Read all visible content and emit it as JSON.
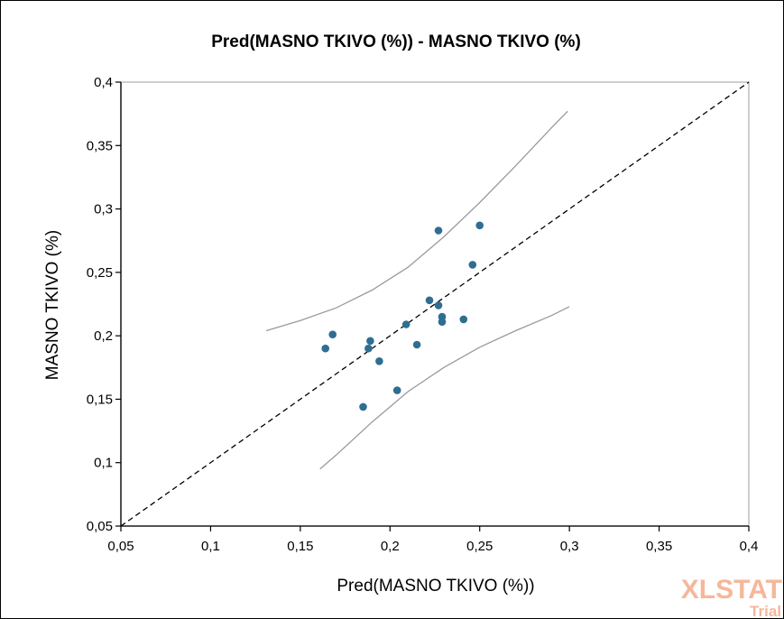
{
  "chart_data": {
    "type": "scatter",
    "title": "Pred(MASNO TKIVO (%)) - MASNO TKIVO (%)",
    "xlabel": "Pred(MASNO TKIVO (%))",
    "ylabel": "MASNO TKIVO (%)",
    "xlim": [
      0.05,
      0.4
    ],
    "ylim": [
      0.05,
      0.4
    ],
    "xticks": [
      "0,05",
      "0,1",
      "0,15",
      "0,2",
      "0,25",
      "0,3",
      "0,35",
      "0,4"
    ],
    "yticks": [
      "0,05",
      "0,1",
      "0,15",
      "0,2",
      "0,25",
      "0,3",
      "0,35",
      "0,4"
    ],
    "xtick_values": [
      0.05,
      0.1,
      0.15,
      0.2,
      0.25,
      0.3,
      0.35,
      0.4
    ],
    "ytick_values": [
      0.05,
      0.1,
      0.15,
      0.2,
      0.25,
      0.3,
      0.35,
      0.4
    ],
    "grid": false,
    "points": {
      "x": [
        0.164,
        0.168,
        0.185,
        0.188,
        0.189,
        0.194,
        0.204,
        0.209,
        0.215,
        0.222,
        0.227,
        0.227,
        0.229,
        0.229,
        0.241,
        0.246,
        0.25
      ],
      "y": [
        0.19,
        0.201,
        0.144,
        0.19,
        0.196,
        0.18,
        0.157,
        0.209,
        0.193,
        0.228,
        0.224,
        0.283,
        0.215,
        0.211,
        0.213,
        0.256,
        0.287
      ]
    },
    "reference_line": {
      "x": [
        0.05,
        0.4
      ],
      "y": [
        0.05,
        0.4
      ]
    },
    "upper_band": {
      "x": [
        0.131,
        0.15,
        0.17,
        0.19,
        0.21,
        0.23,
        0.25,
        0.27,
        0.29,
        0.299
      ],
      "y": [
        0.204,
        0.212,
        0.222,
        0.236,
        0.254,
        0.278,
        0.305,
        0.334,
        0.364,
        0.377
      ]
    },
    "lower_band": {
      "x": [
        0.161,
        0.17,
        0.19,
        0.21,
        0.23,
        0.25,
        0.27,
        0.29,
        0.3
      ],
      "y": [
        0.095,
        0.106,
        0.132,
        0.156,
        0.175,
        0.191,
        0.204,
        0.216,
        0.223
      ]
    },
    "colors": {
      "points": "#2e6e92",
      "bands": "#9a9a9a",
      "reference": "#000000",
      "axes": "#000000",
      "frame": "#bfbfbf"
    }
  },
  "watermark": {
    "main": "XLSTAT",
    "sub": "Trial"
  }
}
